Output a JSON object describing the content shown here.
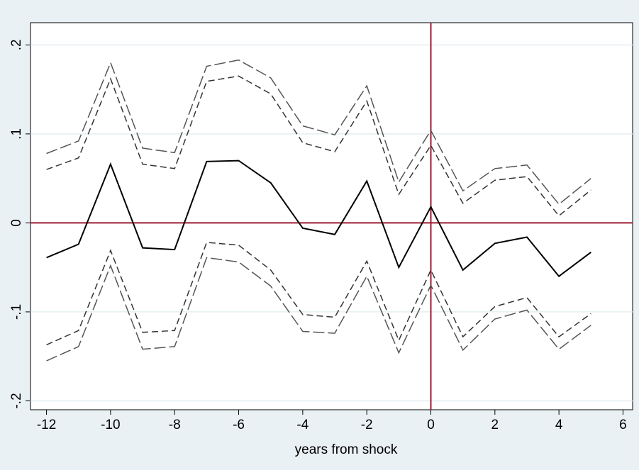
{
  "chart_data": {
    "type": "line",
    "title": "",
    "xlabel": "years from shock",
    "ylabel": "",
    "xlim": [
      -12.5,
      6.3
    ],
    "ylim": [
      -0.21,
      0.225
    ],
    "xticks": [
      -12,
      -10,
      -8,
      -6,
      -4,
      -2,
      0,
      2,
      4,
      6
    ],
    "xtick_labels": [
      "-12",
      "-10",
      "-8",
      "-6",
      "-4",
      "-2",
      "0",
      "2",
      "4",
      "6"
    ],
    "yticks": [
      -0.2,
      -0.1,
      0,
      0.1,
      0.2
    ],
    "ytick_labels": [
      "-.2",
      "-.1",
      "0",
      ".1",
      ".2"
    ],
    "grid": true,
    "reference_lines": {
      "x": 0,
      "y": 0,
      "color": "#9b1c31"
    },
    "x": [
      -12,
      -11,
      -10,
      -9,
      -8,
      -7,
      -6,
      -5,
      -4,
      -3,
      -2,
      -1,
      0,
      1,
      2,
      3,
      4,
      5
    ],
    "series": [
      {
        "style": "solid",
        "color": "#000000",
        "values": [
          -0.039,
          -0.024,
          0.066,
          -0.028,
          -0.03,
          0.069,
          0.07,
          0.045,
          -0.006,
          -0.013,
          0.047,
          -0.05,
          0.018,
          -0.053,
          -0.023,
          -0.016,
          -0.06,
          -0.033
        ]
      },
      {
        "style": "longdash",
        "color": "#555555",
        "values": [
          0.078,
          0.092,
          0.18,
          0.084,
          0.079,
          0.176,
          0.183,
          0.163,
          0.109,
          0.099,
          0.154,
          0.046,
          0.104,
          0.036,
          0.061,
          0.065,
          0.021,
          0.05
        ]
      },
      {
        "style": "dash",
        "color": "#333333",
        "values": [
          0.06,
          0.073,
          0.162,
          0.066,
          0.061,
          0.159,
          0.165,
          0.145,
          0.09,
          0.08,
          0.137,
          0.032,
          0.087,
          0.022,
          0.048,
          0.052,
          0.008,
          0.037
        ]
      },
      {
        "style": "dash",
        "color": "#333333",
        "values": [
          -0.137,
          -0.121,
          -0.031,
          -0.123,
          -0.121,
          -0.022,
          -0.025,
          -0.053,
          -0.103,
          -0.106,
          -0.043,
          -0.132,
          -0.053,
          -0.128,
          -0.094,
          -0.084,
          -0.128,
          -0.102
        ]
      },
      {
        "style": "longdash",
        "color": "#555555",
        "values": [
          -0.155,
          -0.139,
          -0.048,
          -0.142,
          -0.139,
          -0.039,
          -0.044,
          -0.071,
          -0.122,
          -0.124,
          -0.06,
          -0.146,
          -0.07,
          -0.143,
          -0.108,
          -0.098,
          -0.142,
          -0.115
        ]
      }
    ]
  }
}
